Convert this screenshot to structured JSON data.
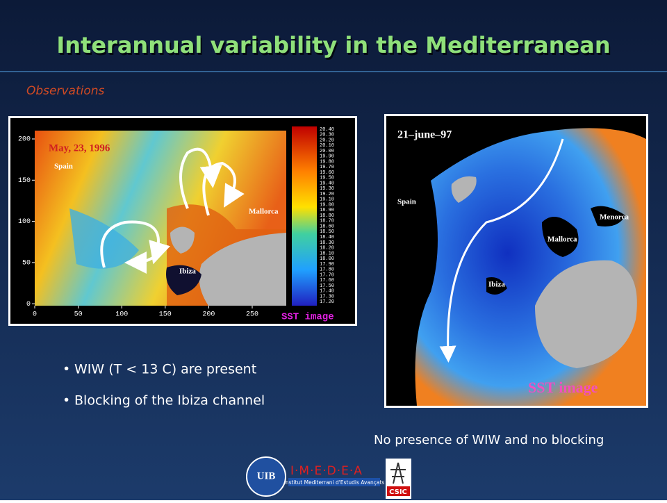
{
  "title": "Interannual variability in the Mediterranean",
  "section": "Observations",
  "left_image": {
    "date": "May, 23, 1996",
    "labels": [
      "Spain",
      "Mallorca",
      "Ibiza"
    ],
    "x_ticks": [
      "0",
      "50",
      "100",
      "150",
      "200",
      "250"
    ],
    "y_ticks": [
      "200",
      "150",
      "100",
      "50",
      "0"
    ],
    "colorbar": [
      "20.40",
      "20.30",
      "20.20",
      "20.10",
      "20.00",
      "19.90",
      "19.80",
      "19.70",
      "19.60",
      "19.50",
      "19.40",
      "19.30",
      "19.20",
      "19.10",
      "19.00",
      "18.90",
      "18.80",
      "18.70",
      "18.60",
      "18.50",
      "18.40",
      "18.30",
      "18.20",
      "18.10",
      "18.00",
      "17.90",
      "17.80",
      "17.70",
      "17.60",
      "17.50",
      "17.40",
      "17.30",
      "17.20"
    ],
    "caption": "SST image"
  },
  "right_image": {
    "date": "21–june–97",
    "labels": [
      "Spain",
      "Menorca",
      "Mallorca",
      "Ibiza"
    ],
    "caption": "SST image"
  },
  "bullets": [
    "WIW (T < 13 C)  are present",
    "Blocking of the Ibiza channel"
  ],
  "right_note": "No presence of WIW and no blocking",
  "logos": {
    "uib": "UIB",
    "imedea": "I·M·E·D·E·A",
    "imedea_sub": "Institut Mediterrani d'Estudis Avançats",
    "csic": "CSIC"
  }
}
